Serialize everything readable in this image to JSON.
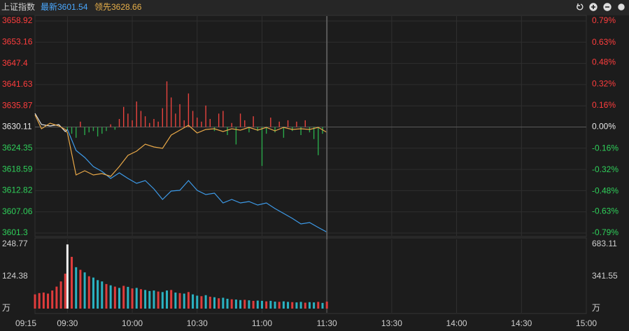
{
  "header": {
    "name": "上证指数",
    "latest": "最新3601.54",
    "lead": "领先3628.66"
  },
  "chart_data": [
    {
      "type": "line",
      "xlim": [
        -15,
        240
      ],
      "ylim": [
        3601.3,
        3658.92
      ],
      "y2lim": [
        -0.79,
        0.79
      ],
      "yticks": [
        3658.92,
        3653.16,
        3647.4,
        3641.63,
        3635.87,
        3630.11,
        3624.35,
        3618.59,
        3612.82,
        3607.06,
        3601.3
      ],
      "y2ticks": [
        {
          "value": 0.79,
          "label": "0.79%"
        },
        {
          "value": 0.63,
          "label": "0.63%"
        },
        {
          "value": 0.48,
          "label": "0.48%"
        },
        {
          "value": 0.32,
          "label": "0.32%"
        },
        {
          "value": 0.16,
          "label": "0.16%"
        },
        {
          "value": 0,
          "label": "0.00%"
        },
        {
          "value": -0.16,
          "label": "-0.16%"
        },
        {
          "value": -0.32,
          "label": "-0.32%"
        },
        {
          "value": -0.48,
          "label": "-0.48%"
        },
        {
          "value": -0.63,
          "label": "-0.63%"
        },
        {
          "value": -0.79,
          "label": "-0.79%"
        }
      ],
      "tick_colors": {
        "up": "#ff3d3d",
        "flat": "#e6e6e6",
        "down": "#2fd05a"
      },
      "series": [
        {
          "type": "bar",
          "axis": "y2",
          "colors": {
            "up": "#e8433e",
            "down": "#2aa84a"
          },
          "x": [
            0,
            2,
            4,
            6,
            8,
            10,
            12,
            14,
            16,
            18,
            20,
            22,
            24,
            26,
            28,
            30,
            32,
            34,
            36,
            38,
            40,
            42,
            44,
            46,
            48,
            50,
            52,
            54,
            56,
            58,
            60,
            62,
            64,
            66,
            68,
            70,
            72,
            74,
            76,
            78,
            80,
            82,
            84,
            86,
            88,
            90,
            92,
            94,
            96,
            98,
            100,
            102,
            104,
            106,
            108,
            110,
            112,
            114,
            116,
            118,
            120
          ],
          "values": [
            -0.02,
            -0.05,
            -0.08,
            0.04,
            -0.06,
            -0.04,
            -0.03,
            -0.07,
            -0.05,
            -0.03,
            0.02,
            -0.02,
            0.06,
            0.15,
            0.1,
            0.05,
            0.19,
            0.12,
            0.08,
            0.03,
            0.06,
            0.04,
            0.14,
            0.34,
            0.22,
            0.1,
            0.17,
            0.05,
            0.25,
            0.12,
            0.07,
            0.04,
            0.16,
            0.06,
            -0.03,
            0.1,
            0.12,
            -0.06,
            0.03,
            -0.13,
            0.1,
            0.05,
            -0.04,
            0.08,
            -0.03,
            -0.29,
            -0.05,
            0.07,
            -0.04,
            0.04,
            -0.08,
            0.05,
            -0.03,
            0.04,
            -0.06,
            0.05,
            -0.04,
            -0.09,
            -0.21,
            -0.05,
            0.08
          ]
        },
        {
          "color": "#e8e8e8",
          "x": [
            -15,
            -12,
            -8,
            -4,
            -1,
            0
          ],
          "values": [
            3633.82,
            3630.78,
            3630.4,
            3630.78,
            3628.87,
            3629.45
          ]
        },
        {
          "color": "#3d9ae8",
          "x": [
            0,
            4,
            8,
            12,
            16,
            20,
            24,
            28,
            32,
            36,
            40,
            44,
            48,
            52,
            56,
            60,
            64,
            68,
            72,
            76,
            80,
            84,
            88,
            92,
            96,
            100,
            104,
            108,
            112,
            116,
            120
          ],
          "values": [
            3629.45,
            3623.74,
            3621.84,
            3619.37,
            3618.04,
            3616.13,
            3617.65,
            3616.13,
            3614.8,
            3615.56,
            3613.28,
            3610.43,
            3612.71,
            3612.9,
            3615.56,
            3612.9,
            3611.76,
            3612.14,
            3609.48,
            3610.43,
            3609.48,
            3609.86,
            3608.91,
            3609.48,
            3607.96,
            3606.62,
            3605.29,
            3603.77,
            3604.15,
            3602.82,
            3601.54
          ]
        },
        {
          "color": "#e8a848",
          "x": [
            -15,
            -12,
            -8,
            -4,
            -1,
            0,
            4,
            8,
            12,
            16,
            20,
            24,
            28,
            32,
            36,
            40,
            44,
            48,
            52,
            56,
            60,
            64,
            68,
            72,
            76,
            80,
            84,
            88,
            92,
            96,
            100,
            104,
            108,
            112,
            116,
            120
          ],
          "values": [
            3633.44,
            3629.64,
            3631.16,
            3630.4,
            3629.45,
            3628.49,
            3617.08,
            3618.23,
            3617.08,
            3617.46,
            3616.7,
            3619.37,
            3622.41,
            3623.55,
            3625.45,
            3624.69,
            3624.31,
            3627.92,
            3629.25,
            3630.59,
            3628.49,
            3629.45,
            3629.64,
            3628.87,
            3629.64,
            3629.25,
            3630.02,
            3629.25,
            3630.02,
            3629.06,
            3630.02,
            3629.45,
            3629.64,
            3629.45,
            3630.02,
            3628.66
          ]
        }
      ]
    },
    {
      "type": "bar",
      "xlim": [
        -15,
        240
      ],
      "ylim": [
        0,
        248.77
      ],
      "y2lim": [
        0,
        683.11
      ],
      "yticks": [
        248.77,
        124.38,
        {
          "value": 0,
          "label": "万"
        }
      ],
      "y2ticks": [
        683.11,
        341.55,
        {
          "value": 0,
          "label": "万"
        }
      ],
      "xticks": [
        {
          "value": -15,
          "label": "09:15"
        },
        {
          "value": 0,
          "label": "09:30"
        },
        {
          "value": 30,
          "label": "10:00"
        },
        {
          "value": 60,
          "label": "10:30"
        },
        {
          "value": 90,
          "label": "11:00"
        },
        {
          "value": 120,
          "label": "11:30"
        },
        {
          "value": 150,
          "label": "13:30"
        },
        {
          "value": 180,
          "label": "14:00"
        },
        {
          "value": 210,
          "label": "14:30"
        },
        {
          "value": 240,
          "label": "15:00"
        }
      ],
      "series": [
        {
          "color": "#f0f0f0",
          "x": [
            0
          ],
          "values": [
            248
          ]
        },
        {
          "color": "#e03c3c",
          "x": [
            -15,
            -13,
            -11,
            -9,
            -7,
            -5,
            -3,
            -1,
            2,
            6,
            10,
            18,
            22,
            26,
            30,
            34,
            42,
            48,
            52,
            56,
            62,
            66,
            70,
            76,
            82,
            86,
            92,
            98,
            104,
            110,
            116,
            120
          ],
          "values": [
            55,
            60,
            62,
            58,
            70,
            85,
            105,
            135,
            200,
            150,
            125,
            95,
            85,
            88,
            78,
            75,
            66,
            72,
            60,
            64,
            48,
            46,
            40,
            36,
            34,
            30,
            28,
            26,
            25,
            23,
            26,
            27
          ]
        },
        {
          "color": "#2ab3c2",
          "x": [
            4,
            8,
            12,
            14,
            16,
            20,
            24,
            28,
            32,
            36,
            38,
            40,
            44,
            46,
            50,
            54,
            58,
            60,
            64,
            68,
            72,
            74,
            78,
            80,
            84,
            88,
            90,
            94,
            96,
            100,
            102,
            106,
            108,
            112,
            114,
            118
          ],
          "values": [
            160,
            140,
            120,
            110,
            105,
            90,
            80,
            84,
            80,
            72,
            68,
            70,
            64,
            70,
            62,
            58,
            55,
            50,
            52,
            44,
            42,
            38,
            35,
            33,
            32,
            31,
            30,
            30,
            27,
            28,
            26,
            24,
            26,
            25,
            24,
            22
          ]
        }
      ]
    }
  ]
}
